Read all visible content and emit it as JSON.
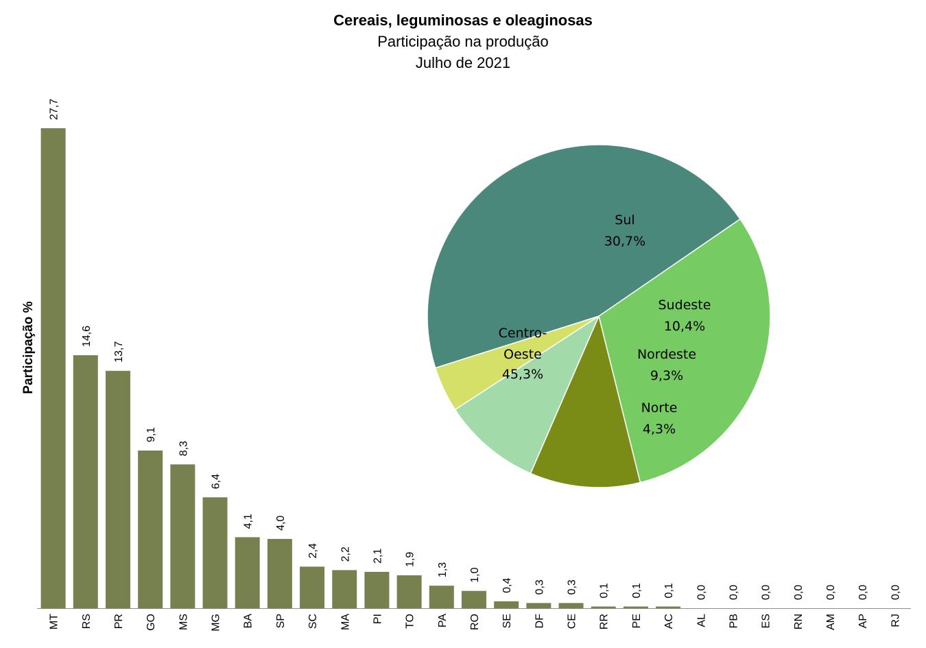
{
  "chart_data": [
    {
      "type": "bar",
      "title": "Cereais, leguminosas e oleaginosas",
      "subtitle": "Participação na produção",
      "period": "Julho de 2021",
      "ylabel": "Participação %",
      "categories": [
        "MT",
        "RS",
        "PR",
        "GO",
        "MS",
        "MG",
        "BA",
        "SP",
        "SC",
        "MA",
        "PI",
        "TO",
        "PA",
        "RO",
        "SE",
        "DF",
        "CE",
        "RR",
        "PE",
        "AC",
        "AL",
        "PB",
        "ES",
        "RN",
        "AM",
        "AP",
        "RJ"
      ],
      "values": [
        27.7,
        14.6,
        13.7,
        9.1,
        8.3,
        6.4,
        4.1,
        4.0,
        2.4,
        2.2,
        2.1,
        1.9,
        1.3,
        1.0,
        0.4,
        0.3,
        0.3,
        0.1,
        0.1,
        0.1,
        0.0,
        0.0,
        0.0,
        0.0,
        0.0,
        0.0,
        0.0
      ],
      "value_labels": [
        "27,7",
        "14,6",
        "13,7",
        "9,1",
        "8,3",
        "6,4",
        "4,1",
        "4,0",
        "2,4",
        "2,2",
        "2,1",
        "1,9",
        "1,3",
        "1,0",
        "0,4",
        "0,3",
        "0,3",
        "0,1",
        "0,1",
        "0,1",
        "0,0",
        "0,0",
        "0,0",
        "0,0",
        "0,0",
        "0,0",
        "0,0"
      ],
      "ylim": [
        0,
        27.7
      ],
      "grid": false,
      "bar_color": "#77804f"
    },
    {
      "type": "pie",
      "slices": [
        {
          "name": "Sul",
          "value": 30.7,
          "label": "30,7%",
          "color": "#76cb62"
        },
        {
          "name": "Sudeste",
          "value": 10.4,
          "label": "10,4%",
          "color": "#7a8c15"
        },
        {
          "name": "Nordeste",
          "value": 9.3,
          "label": "9,3%",
          "color": "#a2dba9"
        },
        {
          "name": "Norte",
          "value": 4.3,
          "label": "4,3%",
          "color": "#d4e068"
        },
        {
          "name": "Centro-Oeste",
          "value": 45.3,
          "label": "45,3%",
          "color": "#4a887c"
        }
      ]
    }
  ]
}
